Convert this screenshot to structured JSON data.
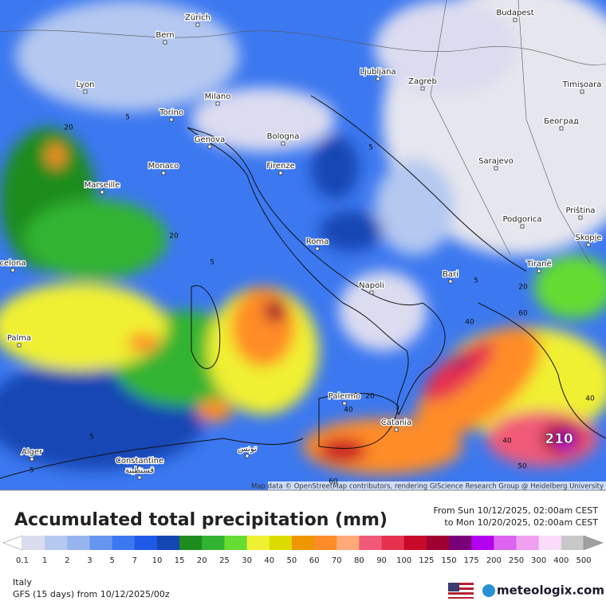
{
  "map": {
    "cities": [
      "Zürich",
      "Bern",
      "Lyon",
      "Milano",
      "Torino",
      "Genova",
      "Bologna",
      "Monaco",
      "Firenze",
      "Marseille",
      "Roma",
      "Napoli",
      "Bari",
      "Palermo",
      "Catania",
      "Palma",
      "celona",
      "Alger",
      "Constantine",
      "قسنطينة",
      "تونس",
      "Ljubljana",
      "Zagreb",
      "Budapest",
      "Timișoara",
      "Београд",
      "Sarajevo",
      "Podgorica",
      "Priština",
      "Skopje",
      "Tiranë"
    ],
    "contour_labels": [
      20,
      5,
      5,
      20,
      5,
      5,
      20,
      60,
      40,
      20,
      40,
      40,
      50,
      60,
      40,
      5,
      5
    ],
    "max_label": 210,
    "attribution": "Map data © OpenStreetMap contributors, rendering GIScience Research Group @ Heidelberg University"
  },
  "footer": {
    "title": "Accumulated total precipitation (mm)",
    "period_from": "From Sun 10/12/2025, 02:00am CEST",
    "period_to": "to Mon 10/20/2025, 02:00am CEST",
    "region": "Italy",
    "model": "GFS (15 days) from 10/12/2025/00z",
    "brand": "meteologix.com"
  },
  "legend": {
    "ticks": [
      0.1,
      1,
      2,
      3,
      5,
      7,
      10,
      15,
      20,
      25,
      30,
      40,
      50,
      60,
      70,
      80,
      90,
      100,
      125,
      150,
      175,
      200,
      250,
      300,
      400,
      500
    ],
    "colors": [
      "#dcdcf0",
      "#b4c8f0",
      "#96b4f0",
      "#6496f0",
      "#3c78f0",
      "#1e5ae6",
      "#1446b4",
      "#1e8c1e",
      "#32b432",
      "#64dc32",
      "#f0f032",
      "#dcdc00",
      "#f09600",
      "#ff8c28",
      "#ffaa78",
      "#f05a78",
      "#e63250",
      "#c80a28",
      "#a00032",
      "#780078",
      "#b400f0",
      "#dc64f0",
      "#f0a0f0",
      "#fadcfa",
      "#c8c8c8"
    ],
    "under_color": "#ffffff",
    "over_color": "#a0a0a0"
  }
}
